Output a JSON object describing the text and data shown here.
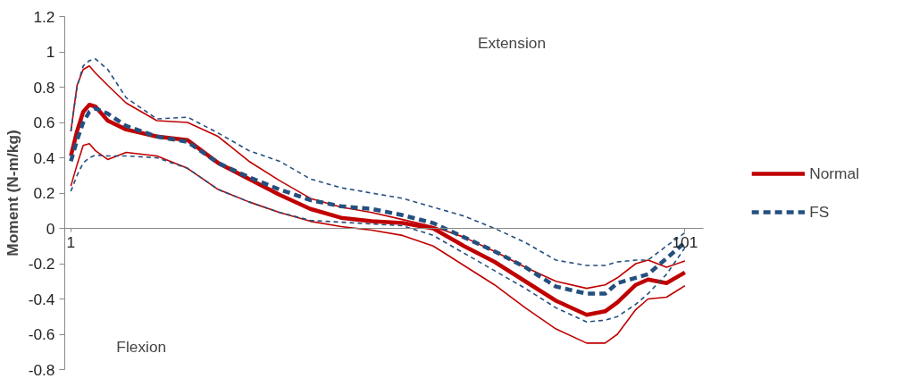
{
  "chart_data": {
    "type": "line",
    "ylabel": "Moment (N-m/kg)",
    "x": [
      1,
      2,
      3,
      4,
      5,
      7,
      10,
      15,
      20,
      25,
      30,
      35,
      40,
      45,
      50,
      55,
      60,
      65,
      70,
      75,
      80,
      85,
      88,
      90,
      93,
      95,
      98,
      101
    ],
    "series": [
      {
        "name": "Normal",
        "color": "#c00000",
        "line_style": "solid",
        "values": [
          0.41,
          0.55,
          0.66,
          0.7,
          0.69,
          0.61,
          0.56,
          0.52,
          0.5,
          0.37,
          0.28,
          0.19,
          0.11,
          0.06,
          0.04,
          0.03,
          0.0,
          -0.1,
          -0.19,
          -0.3,
          -0.41,
          -0.49,
          -0.47,
          -0.42,
          -0.32,
          -0.29,
          -0.31,
          -0.25
        ]
      },
      {
        "color": "#c00000",
        "line_style": "solid",
        "values": [
          0.55,
          0.81,
          0.9,
          0.92,
          0.88,
          0.81,
          0.71,
          0.61,
          0.6,
          0.52,
          0.38,
          0.27,
          0.17,
          0.12,
          0.09,
          0.05,
          0.01,
          -0.05,
          -0.13,
          -0.22,
          -0.3,
          -0.34,
          -0.32,
          -0.28,
          -0.2,
          -0.18,
          -0.22,
          -0.185
        ]
      },
      {
        "color": "#c00000",
        "line_style": "solid",
        "values": [
          0.24,
          0.36,
          0.47,
          0.48,
          0.44,
          0.39,
          0.43,
          0.41,
          0.34,
          0.22,
          0.15,
          0.09,
          0.04,
          0.01,
          -0.01,
          -0.04,
          -0.1,
          -0.21,
          -0.32,
          -0.45,
          -0.57,
          -0.65,
          -0.65,
          -0.6,
          -0.46,
          -0.4,
          -0.39,
          -0.325
        ]
      },
      {
        "name": "FS",
        "color": "#24507f",
        "line_style": "dashed",
        "values": [
          0.38,
          0.5,
          0.6,
          0.66,
          0.68,
          0.65,
          0.58,
          0.52,
          0.49,
          0.37,
          0.29,
          0.22,
          0.16,
          0.125,
          0.11,
          0.075,
          0.03,
          -0.05,
          -0.13,
          -0.22,
          -0.33,
          -0.37,
          -0.37,
          -0.31,
          -0.28,
          -0.26,
          -0.17,
          -0.08
        ]
      },
      {
        "color": "#24507f",
        "line_style": "dashed",
        "values": [
          0.55,
          0.8,
          0.92,
          0.95,
          0.96,
          0.9,
          0.74,
          0.62,
          0.63,
          0.54,
          0.44,
          0.38,
          0.28,
          0.23,
          0.2,
          0.17,
          0.12,
          0.07,
          0.0,
          -0.08,
          -0.18,
          -0.21,
          -0.21,
          -0.19,
          -0.18,
          -0.18,
          -0.1,
          -0.025
        ]
      },
      {
        "color": "#24507f",
        "line_style": "dashed",
        "values": [
          0.21,
          0.3,
          0.37,
          0.4,
          0.415,
          0.41,
          0.41,
          0.4,
          0.34,
          0.22,
          0.15,
          0.09,
          0.045,
          0.035,
          0.025,
          0.015,
          -0.04,
          -0.14,
          -0.24,
          -0.34,
          -0.45,
          -0.53,
          -0.52,
          -0.5,
          -0.43,
          -0.37,
          -0.26,
          -0.11
        ]
      }
    ],
    "xlim": [
      0,
      104
    ],
    "xticks": [
      1,
      101
    ],
    "ylim": [
      -0.8,
      1.2
    ],
    "yticks": [
      -0.8,
      -0.6,
      -0.4,
      -0.2,
      0,
      0.2,
      0.4,
      0.6,
      0.8,
      1,
      1.2
    ],
    "grid": false,
    "legend": "right",
    "annotations": [
      "Extension",
      "Flexion"
    ]
  }
}
